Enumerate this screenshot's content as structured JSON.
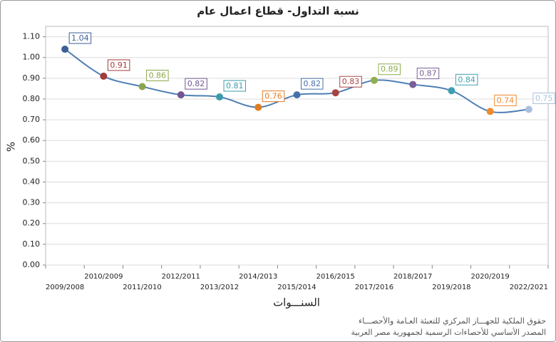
{
  "chart_data": {
    "type": "line",
    "title": "نسبة التداول- قطاع اعمال عام",
    "xlabel": "السنـــوات",
    "ylabel": "%",
    "categories": [
      "2009/2008",
      "2010/2009",
      "2011/2010",
      "2012/2011",
      "2013/2012",
      "2014/2013",
      "2015/2014",
      "2016/2015",
      "2017/2016",
      "2018/2017",
      "2019/2018",
      "2020/2019",
      "2022/2021"
    ],
    "values": [
      1.04,
      0.91,
      0.86,
      0.82,
      0.81,
      0.76,
      0.82,
      0.83,
      0.89,
      0.87,
      0.84,
      0.74,
      0.75
    ],
    "color": "#4f7fb5",
    "point_colors": [
      "#3c5f96",
      "#a33b3b",
      "#8aa64a",
      "#71568f",
      "#3a9aac",
      "#e07b22",
      "#4570a8",
      "#a84343",
      "#8fae4e",
      "#7a5f98",
      "#3f9fb0",
      "#f08a2c",
      "#a9c0de"
    ],
    "ylim": [
      0,
      1.15
    ],
    "yticks": [
      {
        "value": 0,
        "label": "0.00"
      },
      {
        "value": 0.1,
        "label": "0.10"
      },
      {
        "value": 0.2,
        "label": "0.20"
      },
      {
        "value": 0.3,
        "label": "0.30"
      },
      {
        "value": 0.4,
        "label": "0.40"
      },
      {
        "value": 0.5,
        "label": "0.50"
      },
      {
        "value": 0.6,
        "label": "0.60"
      },
      {
        "value": 0.7,
        "label": "0.70"
      },
      {
        "value": 0.8,
        "label": "0.80"
      },
      {
        "value": 0.9,
        "label": "0.90"
      },
      {
        "value": 1,
        "label": "1.00"
      },
      {
        "value": 1.1,
        "label": "1.10"
      }
    ],
    "grid": true
  },
  "footer": [
    "حقوق الملكية للجهـــاز المركزي للتعبئة العـامة والأحصـــاء",
    "المصدر الأساسي للأحصاءات الرسمية لجمهورية مصر العربية"
  ]
}
